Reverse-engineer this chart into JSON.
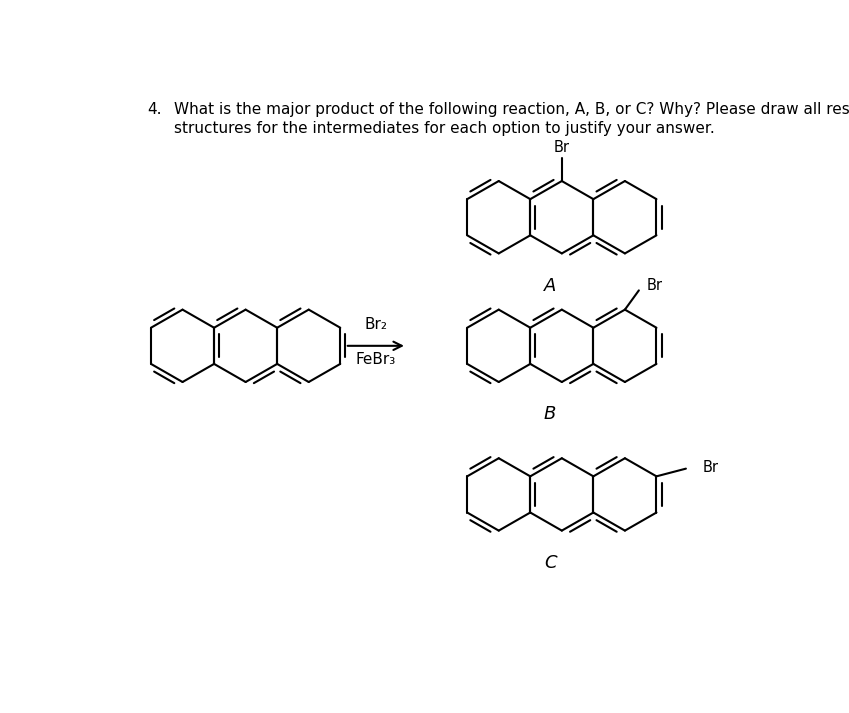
{
  "title_number": "4.",
  "title_text": "What is the major product of the following reaction, A, B, or C? Why? Please draw all resonance",
  "title_text2": "structures for the intermediates for each option to justify your answer.",
  "reagent1": "Br₂",
  "reagent2": "FeBr₃",
  "label_A": "A",
  "label_B": "B",
  "label_C": "C",
  "label_Br": "Br",
  "bg_color": "#ffffff",
  "line_color": "#000000",
  "text_color": "#000000",
  "font_size_title": 11,
  "font_size_label": 13,
  "font_size_reagent": 11,
  "lw": 1.5
}
